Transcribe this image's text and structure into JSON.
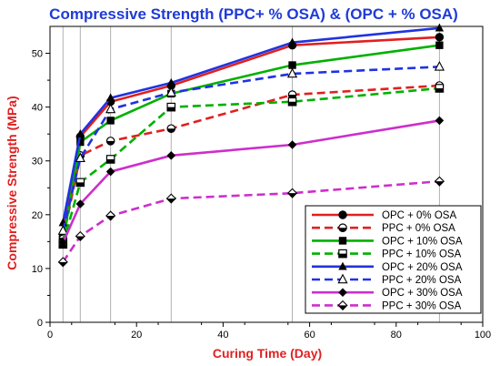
{
  "chart_data": {
    "type": "line",
    "title": "Compressive Strength (PPC+ % OSA) & (OPC + % OSA)",
    "xlabel": "Curing Time (Day)",
    "ylabel": "Compressive Strength (MPa)",
    "xlim": [
      0,
      100
    ],
    "ylim": [
      0,
      55
    ],
    "xticks": [
      "0",
      "20",
      "40",
      "60",
      "80",
      "100"
    ],
    "yticks": [
      "0",
      "10",
      "20",
      "30",
      "40",
      "50"
    ],
    "legend_position": "bottom-right",
    "vertical_gridlines_at_x": [
      3,
      7,
      14,
      28,
      56,
      90
    ],
    "series": [
      {
        "name": "OPC + 0% OSA",
        "color": "#e02020",
        "dash": "solid",
        "marker": "circle-filled",
        "x": [
          3,
          7,
          14,
          28,
          56,
          90
        ],
        "y": [
          16,
          34.5,
          41,
          44,
          51.5,
          53
        ]
      },
      {
        "name": "PPC + 0% OSA",
        "color": "#e02020",
        "dash": "dashed",
        "marker": "circle-half",
        "x": [
          3,
          7,
          14,
          28,
          56,
          90
        ],
        "y": [
          15.5,
          31,
          33.7,
          36,
          42.3,
          44
        ]
      },
      {
        "name": "OPC + 10% OSA",
        "color": "#00b000",
        "dash": "solid",
        "marker": "square-filled",
        "x": [
          3,
          7,
          14,
          28,
          56,
          90
        ],
        "y": [
          15,
          33.5,
          37.5,
          42.5,
          47.8,
          51.5
        ]
      },
      {
        "name": "PPC + 10% OSA",
        "color": "#00b000",
        "dash": "dashed",
        "marker": "square-half",
        "x": [
          3,
          7,
          14,
          28,
          56,
          90
        ],
        "y": [
          14.5,
          26,
          30.3,
          40,
          41,
          43.5
        ]
      },
      {
        "name": "OPC + 20% OSA",
        "color": "#2033e0",
        "dash": "solid",
        "marker": "triangle-filled",
        "x": [
          3,
          7,
          14,
          28,
          56,
          90
        ],
        "y": [
          18.5,
          35,
          41.7,
          44.5,
          52,
          54.7
        ]
      },
      {
        "name": "PPC + 20% OSA",
        "color": "#2033e0",
        "dash": "dashed",
        "marker": "triangle-open",
        "x": [
          3,
          7,
          14,
          28,
          56,
          90
        ],
        "y": [
          17,
          30.5,
          39.6,
          42.7,
          46.2,
          47.5
        ]
      },
      {
        "name": "OPC + 30% OSA",
        "color": "#cc2fcc",
        "dash": "solid",
        "marker": "diamond-filled",
        "x": [
          3,
          7,
          14,
          28,
          56,
          90
        ],
        "y": [
          14.8,
          22,
          28,
          31,
          33,
          37.5
        ]
      },
      {
        "name": "PPC + 30% OSA",
        "color": "#cc2fcc",
        "dash": "dashed",
        "marker": "diamond-half",
        "x": [
          3,
          7,
          14,
          28,
          56,
          90
        ],
        "y": [
          11.2,
          16,
          19.8,
          23,
          24,
          26.2
        ]
      }
    ]
  }
}
